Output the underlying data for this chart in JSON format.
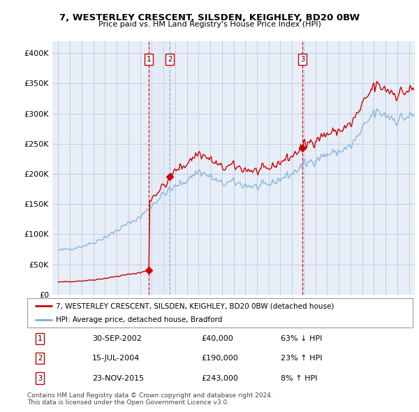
{
  "title": "7, WESTERLEY CRESCENT, SILSDEN, KEIGHLEY, BD20 0BW",
  "subtitle": "Price paid vs. HM Land Registry's House Price Index (HPI)",
  "legend_line1": "7, WESTERLEY CRESCENT, SILSDEN, KEIGHLEY, BD20 0BW (detached house)",
  "legend_line2": "HPI: Average price, detached house, Bradford",
  "footnote1": "Contains HM Land Registry data © Crown copyright and database right 2024.",
  "footnote2": "This data is licensed under the Open Government Licence v3.0.",
  "transactions": [
    {
      "num": 1,
      "date": "30-SEP-2002",
      "price": 40000,
      "pct": "63%",
      "dir": "↓",
      "x_year": 2002.75,
      "vline_style": "dashed_red"
    },
    {
      "num": 2,
      "date": "15-JUL-2004",
      "price": 190000,
      "pct": "23%",
      "dir": "↑",
      "x_year": 2004.54,
      "vline_style": "dashed_blue"
    },
    {
      "num": 3,
      "date": "23-NOV-2015",
      "price": 243000,
      "pct": "8%",
      "dir": "↑",
      "x_year": 2015.89,
      "vline_style": "dashed_red"
    }
  ],
  "red_line_color": "#cc0000",
  "blue_line_color": "#7aaddc",
  "shade_color": "#dde8f5",
  "background_color": "#e8eef8",
  "grid_color": "#b8c8d8",
  "ylim": [
    0,
    420000
  ],
  "yticks": [
    0,
    50000,
    100000,
    150000,
    200000,
    250000,
    300000,
    350000,
    400000
  ],
  "xlim": [
    1994.5,
    2025.5
  ],
  "xticks": [
    1995,
    1996,
    1997,
    1998,
    1999,
    2000,
    2001,
    2002,
    2003,
    2004,
    2005,
    2006,
    2007,
    2008,
    2009,
    2010,
    2011,
    2012,
    2013,
    2014,
    2015,
    2016,
    2017,
    2018,
    2019,
    2020,
    2021,
    2022,
    2023,
    2024,
    2025
  ]
}
